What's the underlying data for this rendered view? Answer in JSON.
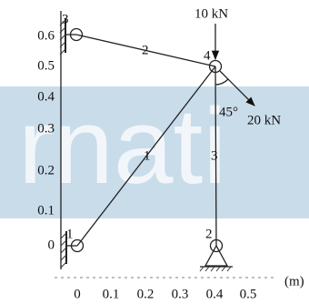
{
  "diagram": {
    "watermark": "rnati",
    "y_axis": {
      "ticks": [
        "0.6",
        "0.5",
        "0.4",
        "0.3",
        "0.2",
        "0.1",
        "0"
      ]
    },
    "x_axis": {
      "ticks": [
        "0",
        "0.1",
        "0.2",
        "0.3",
        "0.4",
        "0.5"
      ],
      "unit": "(m)"
    },
    "nodes": [
      {
        "label": "1"
      },
      {
        "label": "2"
      },
      {
        "label": "3"
      },
      {
        "label": "4"
      }
    ],
    "members": [
      {
        "label": "1"
      },
      {
        "label": "2"
      },
      {
        "label": "3"
      }
    ],
    "loads": [
      {
        "label": "10 kN"
      },
      {
        "label": "20 kN",
        "angle": "45°"
      }
    ]
  }
}
